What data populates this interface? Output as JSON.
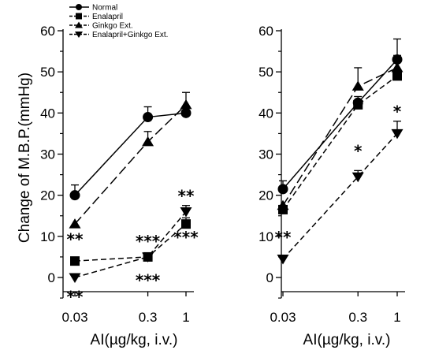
{
  "figure": {
    "ylabel": "Change of M.B.P.(mmHg)"
  },
  "legend": {
    "placement": "top-left",
    "entries": [
      {
        "name": "Normal",
        "marker": "circle",
        "dash": "solid"
      },
      {
        "name": "Enalapril",
        "marker": "square",
        "dash": "dashed"
      },
      {
        "name": "Ginkgo Ext.",
        "marker": "triangle-up",
        "dash": "long-dashed"
      },
      {
        "name": "Enalapril+Ginkgo Ext.",
        "marker": "triangle-down",
        "dash": "dashed"
      }
    ]
  },
  "chart_data": [
    {
      "type": "line",
      "xscale": "log",
      "x": [
        0.03,
        0.3,
        1
      ],
      "xticklabels": [
        "0.03",
        "0.3",
        "1"
      ],
      "xlabel": "AI(µg/kg, i.v.)",
      "ylabel": "Change of M.B.P.(mmHg)",
      "ylim": [
        -5,
        60
      ],
      "yticks": [
        0,
        10,
        20,
        30,
        40,
        50,
        60
      ],
      "grid": false,
      "series": [
        {
          "name": "Normal",
          "values": [
            20,
            39,
            40
          ],
          "errors": [
            2.5,
            2.5,
            1.5
          ]
        },
        {
          "name": "Enalapril",
          "values": [
            4,
            5,
            13
          ],
          "errors": [
            0,
            0,
            1.5
          ]
        },
        {
          "name": "Ginkgo Ext.",
          "values": [
            13,
            33,
            42
          ],
          "errors": [
            0,
            2.5,
            3
          ]
        },
        {
          "name": "Enalapril+Ginkgo Ext.",
          "values": [
            0,
            5,
            16
          ],
          "errors": [
            0,
            0,
            1.5
          ]
        }
      ],
      "annotations": [
        {
          "text": "**",
          "x": 0.03,
          "y": 9.5
        },
        {
          "text": "**",
          "x": 0.03,
          "y": -4.5
        },
        {
          "text": "***",
          "x": 0.3,
          "y": 9
        },
        {
          "text": "***",
          "x": 0.3,
          "y": -0.5
        },
        {
          "text": "**",
          "x": 1,
          "y": 20
        },
        {
          "text": "***",
          "x": 1,
          "y": 10
        }
      ]
    },
    {
      "type": "line",
      "xscale": "log",
      "x": [
        0.03,
        0.3,
        1
      ],
      "xticklabels": [
        "0.03",
        "0.3",
        "1"
      ],
      "xlabel": "AI(µg/kg, i.v.)",
      "ylim": [
        -5,
        60
      ],
      "yticks": [
        0,
        10,
        20,
        30,
        40,
        50,
        60
      ],
      "grid": false,
      "series": [
        {
          "name": "Normal",
          "values": [
            21.5,
            42.5,
            53
          ],
          "errors": [
            2,
            1.5,
            5
          ]
        },
        {
          "name": "Enalapril",
          "values": [
            16.5,
            42,
            49
          ],
          "errors": [
            0,
            0,
            0
          ]
        },
        {
          "name": "Ginkgo Ext.",
          "values": [
            17.5,
            46.5,
            51
          ],
          "errors": [
            0,
            4.5,
            3
          ]
        },
        {
          "name": "Enalapril+Ginkgo Ext.",
          "values": [
            4.5,
            24.5,
            35
          ],
          "errors": [
            0,
            1.5,
            3
          ]
        }
      ],
      "annotations": [
        {
          "text": "**",
          "x": 0.03,
          "y": 10
        },
        {
          "text": "*",
          "x": 0.3,
          "y": 31
        },
        {
          "text": "*",
          "x": 1,
          "y": 40.5
        }
      ]
    }
  ]
}
